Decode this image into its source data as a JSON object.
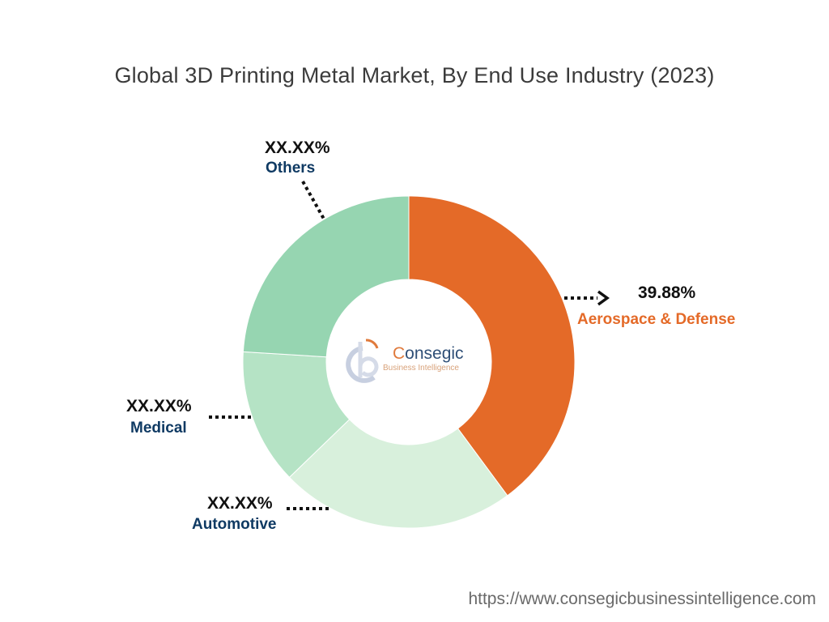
{
  "chart_data": {
    "type": "donut",
    "title": "Global 3D Printing Metal Market, By End Use Industry (2023)",
    "series": [
      {
        "name": "Aerospace & Defense",
        "value": 39.88,
        "label": "39.88%",
        "color": "#e46a28",
        "label_color": "#e46a28"
      },
      {
        "name": "Automotive",
        "value": 22.9,
        "label": "XX.XX%",
        "color": "#d8f0dc",
        "label_color": "#0f3a63"
      },
      {
        "name": "Medical",
        "value": 13.2,
        "label": "XX.XX%",
        "color": "#b5e3c5",
        "label_color": "#0f3a63"
      },
      {
        "name": "Others",
        "value": 24.02,
        "label": "XX.XX%",
        "color": "#96d5b1",
        "label_color": "#0f3a63"
      }
    ]
  },
  "logo": {
    "name": "Consegic",
    "name_first_letter": "C",
    "name_rest": "onsegic",
    "tagline": "Business Intelligence",
    "colors": {
      "primary": "#2f4f77",
      "accent": "#e07a3c"
    }
  },
  "footer": {
    "url": "https://www.consegicbusinessintelligence.com"
  }
}
